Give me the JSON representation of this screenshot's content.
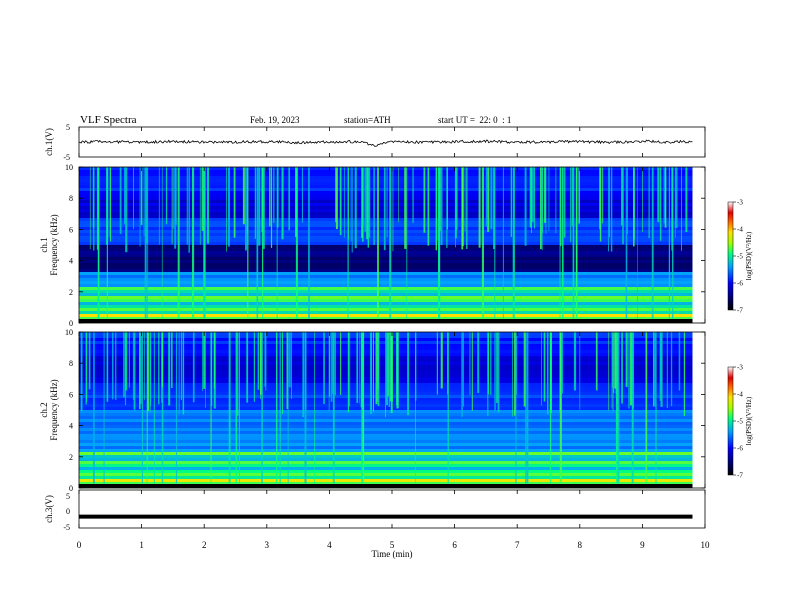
{
  "header": {
    "title": "VLF Spectra",
    "date": "Feb. 19, 2023",
    "station": "station=ATH",
    "start": "start UT =  22: 0  : 1"
  },
  "chart_data": [
    {
      "type": "line",
      "panel": "ch1-waveform",
      "ylabel": "ch.1(V)",
      "ylim": [
        -5,
        5
      ],
      "yticks": [
        5,
        -5
      ],
      "xlim": [
        0,
        10
      ],
      "series": [
        {
          "x": [
            0,
            0.5,
            1,
            1.5,
            2,
            2.5,
            3,
            3.5,
            4,
            4.5,
            4.75,
            5,
            5.5,
            6,
            6.5,
            7,
            7.5,
            8,
            8.5,
            9,
            9.5,
            9.8
          ],
          "values": [
            0,
            0.1,
            -0.1,
            0.2,
            -0.1,
            0,
            0.1,
            -0.2,
            0.1,
            0,
            -1.2,
            0.1,
            -0.1,
            0.1,
            0.2,
            -0.1,
            0,
            0.1,
            -0.1,
            0.2,
            0,
            0.1
          ]
        }
      ]
    },
    {
      "type": "heatmap",
      "panel": "ch1-spectrogram",
      "ylabel": "ch.1 Frequency (kHz)",
      "ylim": [
        0,
        10
      ],
      "yticks": [
        0,
        2,
        4,
        6,
        8,
        10
      ],
      "xlim": [
        0,
        10
      ],
      "colorbar": {
        "label": "log(PSD)(V²/Hz)",
        "range": [
          -7,
          -3
        ],
        "ticks": [
          -3,
          -4,
          -5,
          -6,
          -7
        ]
      }
    },
    {
      "type": "heatmap",
      "panel": "ch2-spectrogram",
      "ylabel": "ch.2 Frequency (kHz)",
      "ylim": [
        0,
        10
      ],
      "yticks": [
        0,
        2,
        4,
        6,
        8,
        10
      ],
      "xlim": [
        0,
        10
      ],
      "colorbar": {
        "label": "log(PSD)(V²/Hz)",
        "range": [
          -7,
          -3
        ],
        "ticks": [
          -3,
          -4,
          -5,
          -6,
          -7
        ]
      }
    },
    {
      "type": "line",
      "panel": "ch3-waveform",
      "ylabel": "ch.3(V)",
      "ylim": [
        -5,
        5
      ],
      "yticks": [
        5,
        0,
        -5
      ],
      "xlim": [
        0,
        10
      ],
      "series": [
        {
          "x": [
            0,
            9.8
          ],
          "values": [
            -2,
            -2
          ]
        }
      ]
    }
  ],
  "xaxis": {
    "label": "Time (min)",
    "ticks": [
      "0",
      "1",
      "2",
      "3",
      "4",
      "5",
      "6",
      "7",
      "8",
      "9",
      "10"
    ]
  },
  "colormap": [
    "#000033",
    "#00007a",
    "#0000d0",
    "#0050ff",
    "#00b4ff",
    "#00e0c0",
    "#40ff40",
    "#d0ff00",
    "#ffd000",
    "#ff6000",
    "#e00000",
    "#ffffff"
  ]
}
